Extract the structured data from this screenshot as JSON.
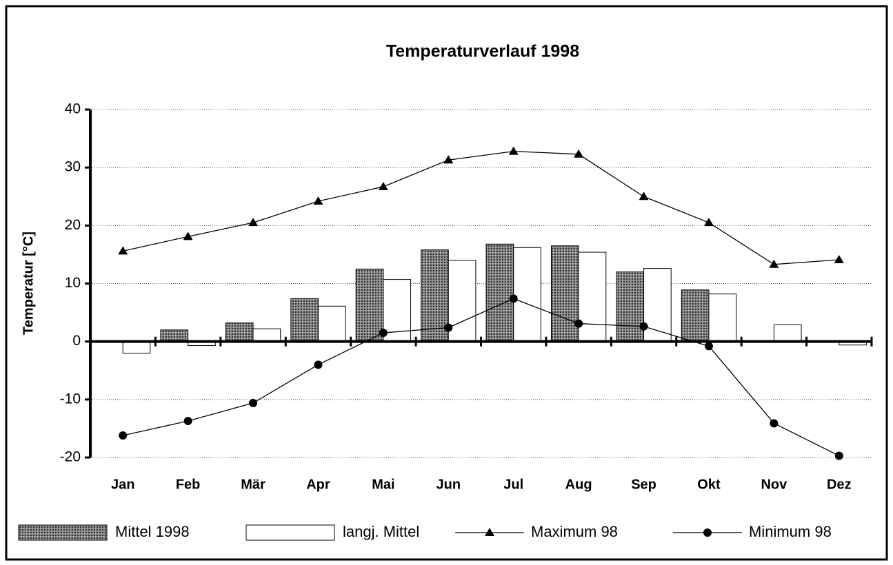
{
  "chart_data": {
    "type": "bar-line",
    "title": "Temperaturverlauf 1998",
    "y_label": "Temperatur [°C]",
    "categories": [
      "Jan",
      "Feb",
      "Mär",
      "Apr",
      "Mai",
      "Jun",
      "Jul",
      "Aug",
      "Sep",
      "Okt",
      "Nov",
      "Dez"
    ],
    "series": [
      {
        "name": "Mittel 1998",
        "kind": "bar",
        "color": "#7a7a7a",
        "values": [
          null,
          2.0,
          3.2,
          7.4,
          12.5,
          15.8,
          16.8,
          16.5,
          12.0,
          8.9,
          null,
          null
        ]
      },
      {
        "name": "langj. Mittel",
        "kind": "bar",
        "color": "#ffffff",
        "values": [
          -2.0,
          -0.7,
          2.2,
          6.1,
          10.7,
          14.0,
          16.2,
          15.4,
          12.6,
          8.2,
          2.9,
          -0.6
        ]
      },
      {
        "name": "Maximum 98",
        "kind": "line",
        "marker": "triangle",
        "color": "#000000",
        "values": [
          15.6,
          18.1,
          20.5,
          24.2,
          26.7,
          31.3,
          32.8,
          32.3,
          25.0,
          20.5,
          13.3,
          14.1
        ]
      },
      {
        "name": "Minimum 98",
        "kind": "line",
        "marker": "circle",
        "color": "#000000",
        "values": [
          -16.2,
          -13.7,
          -10.6,
          -4.0,
          1.5,
          2.4,
          7.4,
          3.1,
          2.6,
          -0.8,
          -14.1,
          -19.7
        ]
      }
    ],
    "ylim": [
      -20,
      40
    ],
    "yticks": [
      -20,
      -10,
      0,
      10,
      20,
      30,
      40
    ],
    "grid": true,
    "legend": "bottom"
  }
}
